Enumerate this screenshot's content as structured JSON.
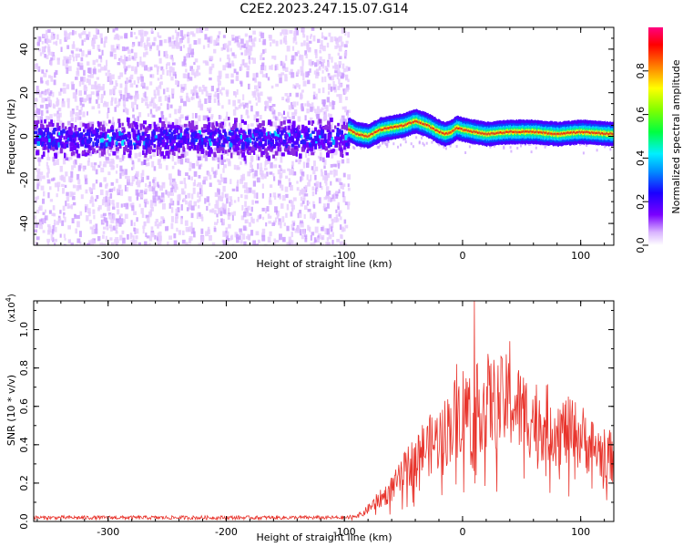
{
  "title": "C2E2.2023.247.15.07.G14",
  "chart_data": [
    {
      "type": "heatmap",
      "xlabel": "Height of straight line (km)",
      "ylabel": "Frequency (Hz)",
      "xlim": [
        -363,
        128
      ],
      "ylim": [
        -50,
        50
      ],
      "xticks": [
        -300,
        -200,
        -100,
        0,
        100
      ],
      "yticks": [
        -40,
        -20,
        0,
        20,
        40
      ],
      "grid": false,
      "data_gap_x": [
        -97,
        128
      ],
      "ridge_profile": {
        "x": [
          -96,
          -90,
          -80,
          -70,
          -60,
          -50,
          -40,
          -30,
          -20,
          -15,
          -10,
          -5,
          0,
          10,
          20,
          40,
          60,
          80,
          100,
          128
        ],
        "freq": [
          3,
          1,
          0,
          3,
          4,
          5,
          7,
          5,
          2,
          1,
          2,
          4,
          3,
          2,
          1,
          2,
          2,
          1,
          2,
          1
        ]
      },
      "colorbar": {
        "label": "Normalized spectral amplitude",
        "range": [
          0.0,
          1.0
        ],
        "ticks": [
          "0.0",
          "0.2",
          "0.4",
          "0.6",
          "0.8"
        ]
      }
    },
    {
      "type": "line",
      "xlabel": "Height of straight line (km)",
      "ylabel": "SNR (10 * v/v)",
      "yscale_label": "(x10",
      "yscale_exp": "4",
      "yscale_close": ")",
      "xlim": [
        -363,
        128
      ],
      "ylim": [
        0,
        1.15
      ],
      "xticks": [
        -300,
        -200,
        -100,
        0,
        100
      ],
      "yticks": [
        "0.0",
        "0.2",
        "0.4",
        "0.6",
        "0.8",
        "1.0"
      ],
      "grid": false,
      "series": [
        {
          "color": "#e8332b",
          "envelope_x": [
            -363,
            -100,
            -85,
            -75,
            -65,
            -55,
            -45,
            -35,
            -25,
            -15,
            -5,
            0,
            10,
            20,
            30,
            40,
            50,
            60,
            70,
            80,
            90,
            100,
            110,
            120,
            128
          ],
          "envelope_y": [
            0.02,
            0.02,
            0.04,
            0.1,
            0.15,
            0.22,
            0.32,
            0.4,
            0.44,
            0.5,
            0.6,
            0.64,
            0.62,
            0.68,
            0.66,
            0.68,
            0.62,
            0.58,
            0.56,
            0.52,
            0.5,
            0.48,
            0.42,
            0.38,
            0.36
          ],
          "spike_x": [
            -5,
            10,
            40
          ],
          "spike_y": [
            0.82,
            1.15,
            0.94
          ]
        }
      ]
    }
  ]
}
